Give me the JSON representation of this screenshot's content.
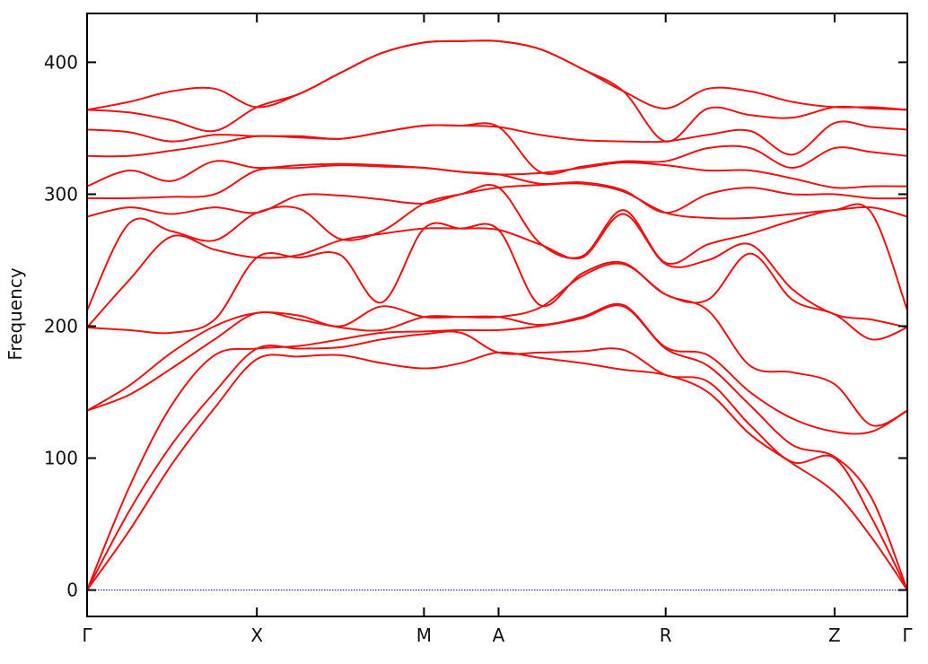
{
  "chart_data": {
    "type": "line",
    "y_label": "Frequency",
    "color": "#ee1111",
    "hline": 0,
    "hline_color": "#0000cc",
    "x": [
      0,
      47,
      94,
      142,
      189,
      236,
      282,
      328,
      375,
      416,
      458,
      504,
      551,
      597,
      644,
      691,
      738,
      785,
      832,
      873,
      913
    ],
    "xlim": [
      0,
      913
    ],
    "xticks": [
      {
        "value": 0,
        "label": "Γ"
      },
      {
        "value": 189,
        "label": "X"
      },
      {
        "value": 375,
        "label": "M"
      },
      {
        "value": 458,
        "label": "A"
      },
      {
        "value": 644,
        "label": "R"
      },
      {
        "value": 832,
        "label": "Z"
      },
      {
        "value": 913,
        "label": "Γ"
      }
    ],
    "ylim": [
      -20,
      437
    ],
    "yticks": [
      0,
      100,
      200,
      300,
      400
    ],
    "series": [
      {
        "values": [
          0,
          45,
          95,
          138,
          175,
          177,
          178,
          172,
          168,
          172,
          180,
          176,
          172,
          167,
          163,
          150,
          118,
          96,
          74,
          40,
          0
        ]
      },
      {
        "values": [
          0,
          60,
          110,
          150,
          183,
          183,
          184,
          190,
          194,
          195,
          180,
          180,
          181,
          182,
          163,
          158,
          125,
          97,
          100,
          55,
          0
        ]
      },
      {
        "values": [
          0,
          78,
          140,
          178,
          183,
          185,
          190,
          195,
          196,
          197,
          197,
          200,
          206,
          215,
          183,
          170,
          140,
          110,
          101,
          70,
          0
        ]
      },
      {
        "values": [
          136,
          148,
          168,
          190,
          210,
          205,
          199,
          197,
          207,
          207,
          207,
          201,
          207,
          216,
          184,
          178,
          150,
          130,
          120,
          120,
          136
        ]
      },
      {
        "values": [
          136,
          155,
          180,
          200,
          210,
          208,
          200,
          215,
          207,
          207,
          207,
          214,
          238,
          247,
          224,
          212,
          170,
          165,
          156,
          125,
          136
        ]
      },
      {
        "values": [
          199,
          197,
          195,
          205,
          252,
          252,
          254,
          218,
          274,
          274,
          273,
          216,
          240,
          248,
          224,
          220,
          255,
          220,
          209,
          190,
          199
        ]
      },
      {
        "values": [
          199,
          235,
          268,
          258,
          252,
          254,
          265,
          270,
          274,
          274,
          273,
          262,
          252,
          285,
          247,
          250,
          262,
          228,
          209,
          205,
          199
        ]
      },
      {
        "values": [
          212,
          278,
          272,
          265,
          286,
          289,
          266,
          272,
          293,
          300,
          305,
          263,
          253,
          288,
          248,
          262,
          270,
          280,
          288,
          286,
          212
        ]
      },
      {
        "values": [
          283,
          290,
          285,
          290,
          286,
          299,
          299,
          296,
          293,
          300,
          305,
          307,
          308,
          302,
          286,
          282,
          282,
          285,
          288,
          290,
          283
        ]
      },
      {
        "values": [
          297,
          297,
          298,
          300,
          318,
          320,
          322,
          321,
          320,
          317,
          315,
          308,
          309,
          303,
          286,
          300,
          305,
          300,
          300,
          297,
          297
        ]
      },
      {
        "values": [
          306,
          318,
          310,
          325,
          320,
          322,
          323,
          322,
          320,
          317,
          315,
          316,
          320,
          324,
          322,
          318,
          318,
          312,
          305,
          306,
          306
        ]
      },
      {
        "values": [
          329,
          329,
          333,
          338,
          344,
          343,
          342,
          347,
          352,
          352,
          351,
          317,
          321,
          325,
          325,
          335,
          335,
          320,
          335,
          332,
          329
        ]
      },
      {
        "values": [
          349,
          347,
          340,
          345,
          344,
          344,
          342,
          347,
          352,
          352,
          351,
          345,
          341,
          340,
          340,
          345,
          348,
          330,
          354,
          351,
          349
        ]
      },
      {
        "values": [
          364,
          362,
          356,
          348,
          366,
          376,
          392,
          407,
          415,
          416,
          416,
          410,
          395,
          378,
          340,
          365,
          360,
          358,
          366,
          365,
          364
        ]
      },
      {
        "values": [
          364,
          370,
          378,
          380,
          366,
          376,
          392,
          407,
          415,
          416,
          416,
          410,
          395,
          378,
          365,
          380,
          378,
          370,
          366,
          366,
          364
        ]
      }
    ]
  }
}
